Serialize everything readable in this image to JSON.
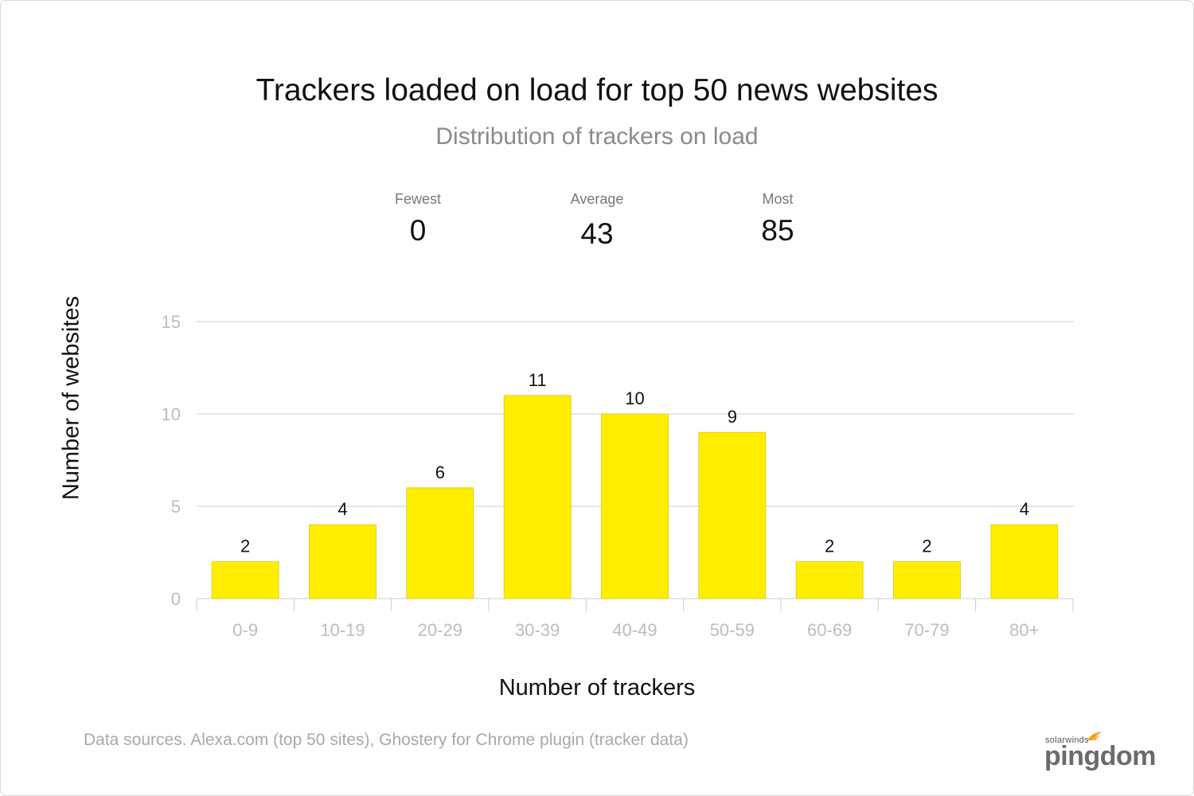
{
  "header": {
    "title": "Trackers loaded on load for top 50 news websites",
    "subtitle": "Distribution of trackers on load"
  },
  "stats": {
    "fewest": {
      "label": "Fewest",
      "value": "0"
    },
    "average": {
      "label": "Average",
      "value": "43"
    },
    "most": {
      "label": "Most",
      "value": "85"
    }
  },
  "chart_data": {
    "type": "bar",
    "title": "Trackers loaded on load for top 50 news websites",
    "subtitle": "Distribution of trackers on load",
    "xlabel": "Number of trackers",
    "ylabel": "Number of websites",
    "categories": [
      "0-9",
      "10-19",
      "20-29",
      "30-39",
      "40-49",
      "50-59",
      "60-69",
      "70-79",
      "80+"
    ],
    "values": [
      2,
      4,
      6,
      11,
      10,
      9,
      2,
      2,
      4
    ],
    "ylim": [
      0,
      15
    ],
    "yticks": [
      0,
      5,
      10,
      15
    ],
    "grid": true,
    "bar_color": "#ffee00",
    "data_labels": true
  },
  "footer": {
    "source": "Data sources. Alexa.com (top 50 sites), Ghostery for Chrome plugin (tracker data)",
    "logo_small": "solarwinds",
    "logo_big": "pingdom"
  },
  "colors": {
    "bar": "#ffee00",
    "gridline": "#cccccc",
    "tick_text": "#bdbdbd",
    "subtitle": "#8a8a8a",
    "logo_flame": "#f99d1c"
  }
}
